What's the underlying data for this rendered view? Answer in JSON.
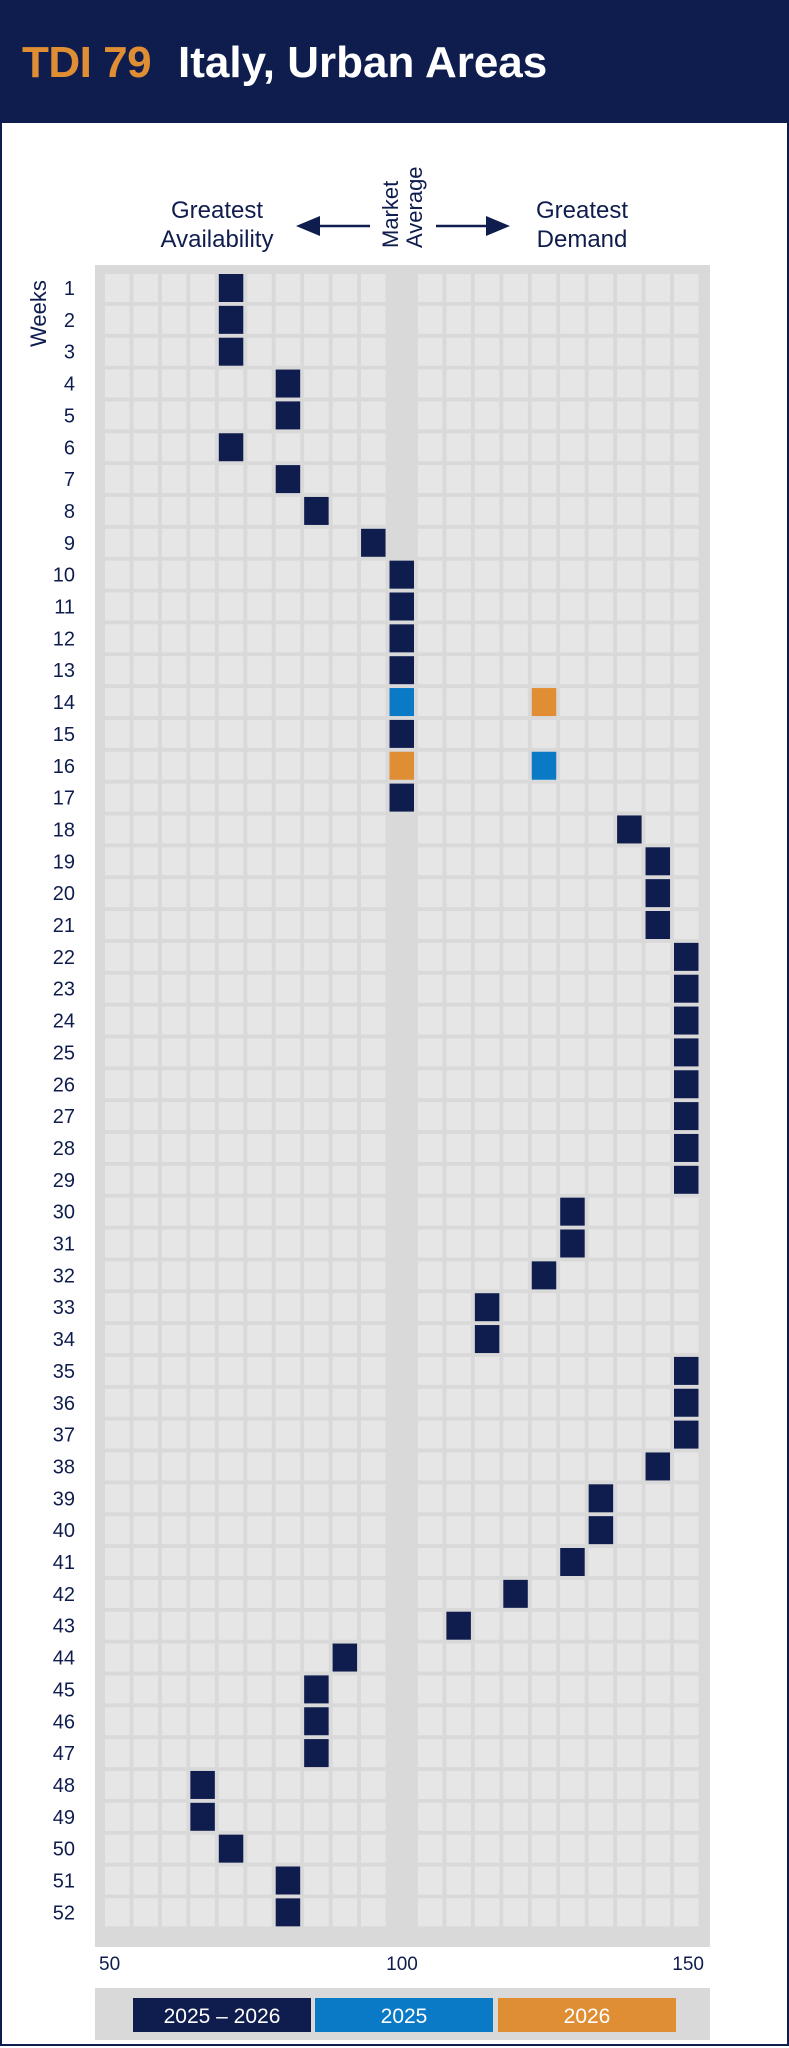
{
  "title": {
    "tdi": "TDI 79",
    "region": "Italy, Urban Areas"
  },
  "header_labels": {
    "left_line1": "Greatest",
    "left_line2": "Availability",
    "mid_line1": "Market",
    "mid_line2": "Average",
    "right_line1": "Greatest",
    "right_line2": "Demand",
    "weeks": "Weeks"
  },
  "colors": {
    "navy": "#0f1d4e",
    "blue": "#0a7ac6",
    "orange": "#e08e34",
    "grid_bg": "#d9d9d9",
    "cell": "#e6e6e6"
  },
  "legend": [
    {
      "label": "2025 – 2026",
      "color": "#0f1d4e"
    },
    {
      "label": "2025",
      "color": "#0a7ac6"
    },
    {
      "label": "2026",
      "color": "#e08e34"
    }
  ],
  "chart_data": {
    "type": "scatter",
    "title": "Italy, Urban Areas",
    "ylabel": "Weeks",
    "xlim": [
      50,
      150
    ],
    "x_ticks": [
      "50",
      "100",
      "150"
    ],
    "weeks": [
      1,
      2,
      3,
      4,
      5,
      6,
      7,
      8,
      9,
      10,
      11,
      12,
      13,
      14,
      15,
      16,
      17,
      18,
      19,
      20,
      21,
      22,
      23,
      24,
      25,
      26,
      27,
      28,
      29,
      30,
      31,
      32,
      33,
      34,
      35,
      36,
      37,
      38,
      39,
      40,
      41,
      42,
      43,
      44,
      45,
      46,
      47,
      48,
      49,
      50,
      51,
      52
    ],
    "series": [
      {
        "name": "2025 – 2026",
        "color": "#0f1d4e",
        "points": [
          {
            "week": 1,
            "value": 70
          },
          {
            "week": 2,
            "value": 70
          },
          {
            "week": 3,
            "value": 70
          },
          {
            "week": 4,
            "value": 80
          },
          {
            "week": 5,
            "value": 80
          },
          {
            "week": 6,
            "value": 70
          },
          {
            "week": 7,
            "value": 80
          },
          {
            "week": 8,
            "value": 85
          },
          {
            "week": 9,
            "value": 95
          },
          {
            "week": 10,
            "value": 100
          },
          {
            "week": 11,
            "value": 100
          },
          {
            "week": 12,
            "value": 100
          },
          {
            "week": 13,
            "value": 100
          },
          {
            "week": 15,
            "value": 100
          },
          {
            "week": 17,
            "value": 100
          },
          {
            "week": 18,
            "value": 140
          },
          {
            "week": 19,
            "value": 145
          },
          {
            "week": 20,
            "value": 145
          },
          {
            "week": 21,
            "value": 145
          },
          {
            "week": 22,
            "value": 150
          },
          {
            "week": 23,
            "value": 150
          },
          {
            "week": 24,
            "value": 150
          },
          {
            "week": 25,
            "value": 150
          },
          {
            "week": 26,
            "value": 150
          },
          {
            "week": 27,
            "value": 150
          },
          {
            "week": 28,
            "value": 150
          },
          {
            "week": 29,
            "value": 150
          },
          {
            "week": 30,
            "value": 130
          },
          {
            "week": 31,
            "value": 130
          },
          {
            "week": 32,
            "value": 125
          },
          {
            "week": 33,
            "value": 115
          },
          {
            "week": 34,
            "value": 115
          },
          {
            "week": 35,
            "value": 150
          },
          {
            "week": 36,
            "value": 150
          },
          {
            "week": 37,
            "value": 150
          },
          {
            "week": 38,
            "value": 145
          },
          {
            "week": 39,
            "value": 135
          },
          {
            "week": 40,
            "value": 135
          },
          {
            "week": 41,
            "value": 130
          },
          {
            "week": 42,
            "value": 120
          },
          {
            "week": 43,
            "value": 110
          },
          {
            "week": 44,
            "value": 90
          },
          {
            "week": 45,
            "value": 85
          },
          {
            "week": 46,
            "value": 85
          },
          {
            "week": 47,
            "value": 85
          },
          {
            "week": 48,
            "value": 65
          },
          {
            "week": 49,
            "value": 65
          },
          {
            "week": 50,
            "value": 70
          },
          {
            "week": 51,
            "value": 80
          },
          {
            "week": 52,
            "value": 80
          }
        ]
      },
      {
        "name": "2025",
        "color": "#0a7ac6",
        "points": [
          {
            "week": 14,
            "value": 100
          },
          {
            "week": 16,
            "value": 125
          }
        ]
      },
      {
        "name": "2026",
        "color": "#e08e34",
        "points": [
          {
            "week": 14,
            "value": 125
          },
          {
            "week": 16,
            "value": 100
          }
        ]
      }
    ]
  }
}
